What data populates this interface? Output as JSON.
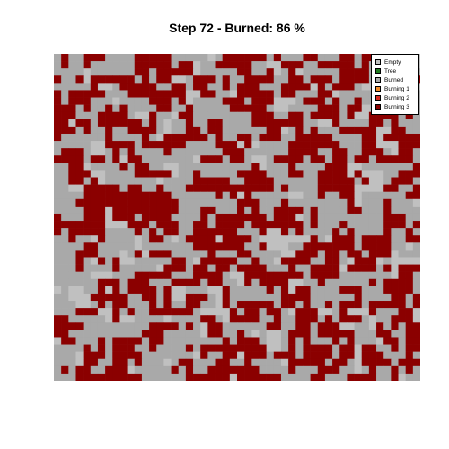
{
  "title": "Step 72 - Burned: 86 %",
  "grid": {
    "cols": 50,
    "rows": 45,
    "burned_fraction": 0.86,
    "state_mix": {
      "empty": 0.1,
      "burned": 0.44,
      "burning3": 0.46
    }
  },
  "legend": {
    "items": [
      {
        "label": "Empty",
        "color": "#c0c0c0"
      },
      {
        "label": "Tree",
        "color": "#1f7a1f"
      },
      {
        "label": "Burned",
        "color": "#a9a9a9"
      },
      {
        "label": "Burning 1",
        "color": "#f28c28"
      },
      {
        "label": "Burning 2",
        "color": "#d62a1f"
      },
      {
        "label": "Burning 3",
        "color": "#8b0000"
      }
    ]
  },
  "colors": {
    "empty": "#c0c0c0",
    "burned": "#a9a9a9",
    "burning3": "#8b0000"
  }
}
